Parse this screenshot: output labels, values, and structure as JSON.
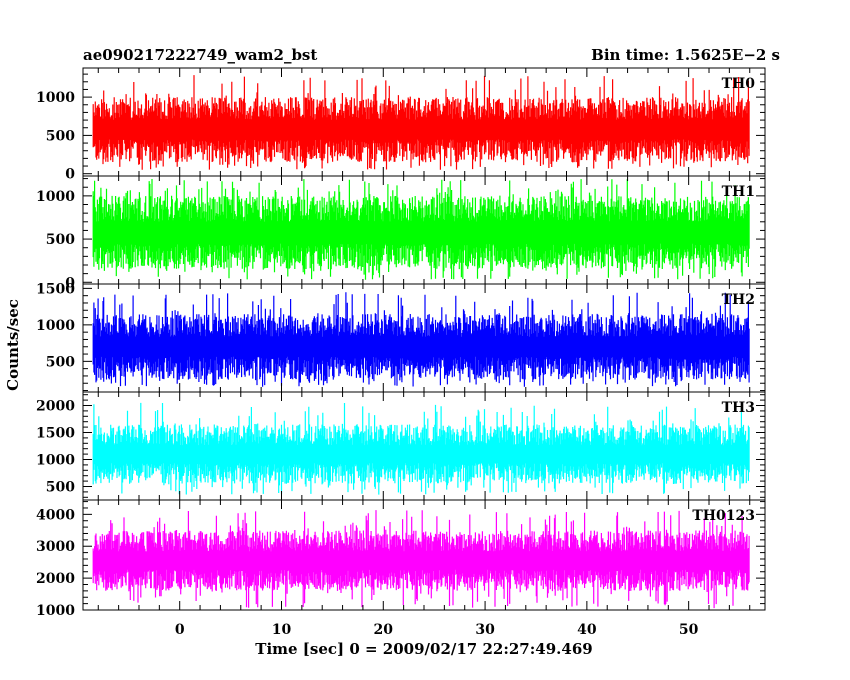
{
  "chart_data": {
    "type": "line",
    "title": "ae090217222749_wam2_bst",
    "bin_time_label": "Bin time: 1.5625E−2 s",
    "xlabel": "Time [sec] 0 = 2009/02/17 22:27:49.469",
    "ylabel": "Counts/sec",
    "xlim": [
      -9.5,
      57.5
    ],
    "x_ticks": [
      0,
      10,
      20,
      30,
      40,
      50
    ],
    "data_x_range": [
      -8.5,
      56
    ],
    "grid": false,
    "panels": [
      {
        "name": "TH0",
        "color": "#ff0000",
        "ylim": [
          -30,
          1380
        ],
        "y_ticks": [
          0,
          500,
          1000
        ],
        "typical_range": [
          150,
          1000
        ],
        "extreme_range": [
          50,
          1300
        ]
      },
      {
        "name": "TH1",
        "color": "#00ff00",
        "ylim": [
          -20,
          1230
        ],
        "y_ticks": [
          0,
          500,
          1000
        ],
        "typical_range": [
          150,
          1000
        ],
        "extreme_range": [
          30,
          1200
        ]
      },
      {
        "name": "TH2",
        "color": "#0000ff",
        "ylim": [
          80,
          1560
        ],
        "y_ticks": [
          500,
          1000,
          1500
        ],
        "typical_range": [
          250,
          1150
        ],
        "extreme_range": [
          150,
          1450
        ]
      },
      {
        "name": "TH3",
        "color": "#00ffff",
        "ylim": [
          250,
          2250
        ],
        "y_ticks": [
          500,
          1000,
          1500,
          2000
        ],
        "typical_range": [
          550,
          1650
        ],
        "extreme_range": [
          350,
          2050
        ]
      },
      {
        "name": "TH0123",
        "color": "#ff00ff",
        "ylim": [
          1000,
          4450
        ],
        "y_ticks": [
          1000,
          2000,
          3000,
          4000
        ],
        "typical_range": [
          1600,
          3500
        ],
        "extreme_range": [
          1050,
          4150
        ]
      }
    ]
  }
}
